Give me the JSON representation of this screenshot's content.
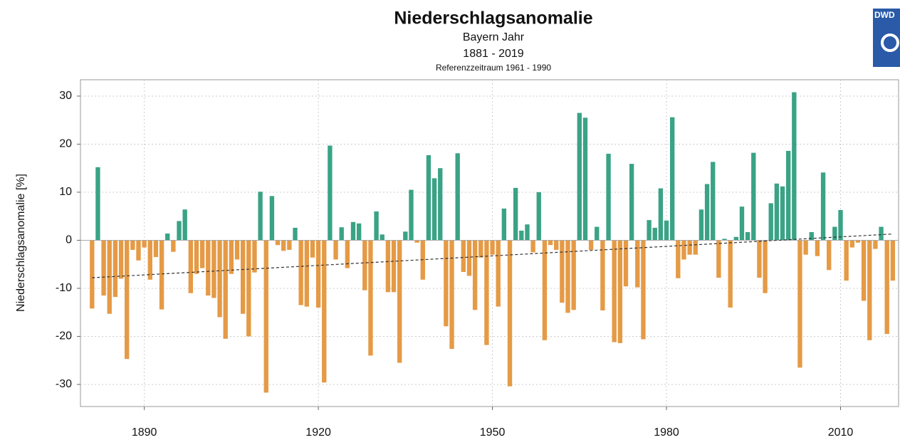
{
  "chart_data": {
    "type": "bar",
    "title": "Niederschlagsanomalie",
    "subtitle": "Bayern Jahr",
    "period": "1881 - 2019",
    "reference": "Referenzzeitraum 1961 - 1990",
    "ylabel": "Niederschlagsanomalie [%]",
    "logo": "DWD",
    "colors": {
      "positive": "#3aa385",
      "negative": "#e59a45"
    },
    "grid": true,
    "xlim": [
      1879,
      2020
    ],
    "xticks": [
      1890,
      1920,
      1950,
      1980,
      2010
    ],
    "ylim": [
      -34.6,
      33.4
    ],
    "yticks": [
      -30,
      -20,
      -10,
      0,
      10,
      20,
      30
    ],
    "x": [
      1881,
      1882,
      1883,
      1884,
      1885,
      1886,
      1887,
      1888,
      1889,
      1890,
      1891,
      1892,
      1893,
      1894,
      1895,
      1896,
      1897,
      1898,
      1899,
      1900,
      1901,
      1902,
      1903,
      1904,
      1905,
      1906,
      1907,
      1908,
      1909,
      1910,
      1911,
      1912,
      1913,
      1914,
      1915,
      1916,
      1917,
      1918,
      1919,
      1920,
      1921,
      1922,
      1923,
      1924,
      1925,
      1926,
      1927,
      1928,
      1929,
      1930,
      1931,
      1932,
      1933,
      1934,
      1935,
      1936,
      1937,
      1938,
      1939,
      1940,
      1941,
      1942,
      1943,
      1944,
      1945,
      1946,
      1947,
      1948,
      1949,
      1950,
      1951,
      1952,
      1953,
      1954,
      1955,
      1956,
      1957,
      1958,
      1959,
      1960,
      1961,
      1962,
      1963,
      1964,
      1965,
      1966,
      1967,
      1968,
      1969,
      1970,
      1971,
      1972,
      1973,
      1974,
      1975,
      1976,
      1977,
      1978,
      1979,
      1980,
      1981,
      1982,
      1983,
      1984,
      1985,
      1986,
      1987,
      1988,
      1989,
      1990,
      1991,
      1992,
      1993,
      1994,
      1995,
      1996,
      1997,
      1998,
      1999,
      2000,
      2001,
      2002,
      2003,
      2004,
      2005,
      2006,
      2007,
      2008,
      2009,
      2010,
      2011,
      2012,
      2013,
      2014,
      2015,
      2016,
      2017,
      2018,
      2019
    ],
    "values": [
      -14.2,
      15.2,
      -11.5,
      -15.3,
      -11.8,
      -8,
      -24.7,
      -2,
      -4.2,
      -1.5,
      -8.2,
      -3.5,
      -14.4,
      1.4,
      -2.4,
      4,
      6.4,
      -11,
      -7,
      -5.8,
      -11.5,
      -12,
      -16,
      -20.5,
      -7,
      -4,
      -15.3,
      -20,
      -6.7,
      10.1,
      -31.7,
      9.2,
      -1,
      -2.2,
      -2,
      2.6,
      -13.5,
      -13.8,
      -3.6,
      -14,
      -29.6,
      19.7,
      -4,
      2.7,
      -5.8,
      3.8,
      3.5,
      -10.4,
      -24,
      6,
      1.2,
      -10.8,
      -10.8,
      -25.5,
      1.8,
      10.5,
      -0.5,
      -8.2,
      17.7,
      12.9,
      15,
      -17.9,
      -22.6,
      18.1,
      -6.6,
      -7.4,
      -14.5,
      -3.6,
      -21.8,
      -3,
      -13.8,
      6.6,
      -30.4,
      10.9,
      2,
      3.3,
      -2.5,
      10,
      -20.8,
      -1,
      -2,
      -13,
      -15.1,
      -14.5,
      26.5,
      25.5,
      -2,
      2.8,
      -14.6,
      18,
      -21.2,
      -21.4,
      -9.6,
      15.9,
      -9.8,
      -20.6,
      4.2,
      2.6,
      10.8,
      4.1,
      25.6,
      -7.9,
      -4,
      -3,
      -3,
      6.4,
      11.7,
      16.3,
      -7.8,
      0.3,
      -14,
      0.7,
      7,
      1.7,
      18.2,
      -7.8,
      -11,
      7.7,
      11.8,
      11.2,
      18.6,
      30.8,
      -26.5,
      -3,
      1.7,
      -3.3,
      14.1,
      -6.2,
      2.8,
      6.3,
      -8.4,
      -1.5,
      -0.5,
      -12.6,
      -20.8,
      -1.8,
      2.8,
      -19.5,
      -8.4
    ],
    "trend": {
      "x": [
        1881,
        2019
      ],
      "values": [
        -7.8,
        1.3
      ],
      "color": "#333333"
    }
  }
}
